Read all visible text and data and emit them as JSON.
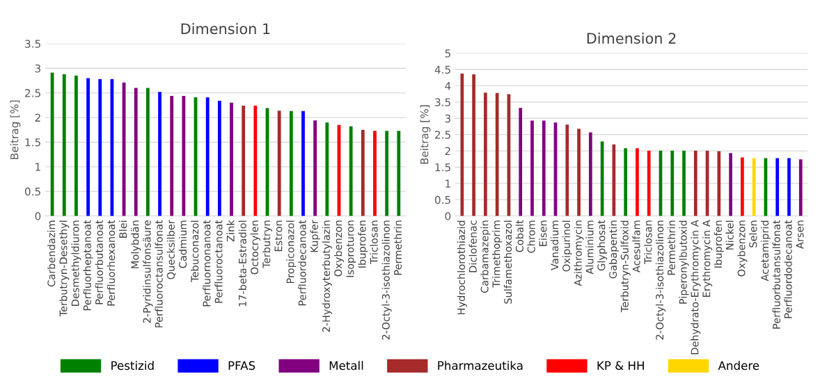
{
  "chart_data": [
    {
      "type": "bar",
      "title": "Dimension 1",
      "ylabel": "Beitrag [%]",
      "ylim": [
        0,
        3.5
      ],
      "yticks": [
        0,
        0.5,
        1,
        1.5,
        2,
        2.5,
        3,
        3.5
      ],
      "grid": "y",
      "legend": "bottom",
      "categories": [
        "Carbendazim",
        "Terbutryn-Desethyl",
        "Desmethyldiuron",
        "Perfluorheptanoat",
        "Perfluorbutanoat",
        "Perfluorhexanoat",
        "Blei",
        "Molybdän",
        "2-Pyridinsulfonsäure",
        "Perfluoroctansulfonat",
        "Quecksilber",
        "Cadmium",
        "Tebuconazol",
        "Perfluornonanoat",
        "Perfluoroctanoat",
        "Zink",
        "17-beta-Estradiol",
        "Octocrylen",
        "Terbutryn",
        "Estron",
        "Propiconazol",
        "Perfluordecanoat",
        "Kupfer",
        "2-Hydroxyterbutylazin",
        "Oxybenzon",
        "Isoproturon",
        "Ibuprofen",
        "Triclosan",
        "2-Octyl-3-isothiazolinon",
        "Permethrin"
      ],
      "series": [
        {
          "name": "Pestizid",
          "color": "#008000",
          "values": [
            2.91,
            2.88,
            2.85,
            null,
            null,
            null,
            null,
            null,
            2.6,
            null,
            null,
            null,
            2.41,
            null,
            null,
            null,
            null,
            null,
            2.19,
            null,
            2.13,
            null,
            null,
            1.9,
            null,
            1.82,
            null,
            null,
            1.73,
            1.73
          ]
        },
        {
          "name": "PFAS",
          "color": "#0000ff",
          "values": [
            null,
            null,
            null,
            2.8,
            2.78,
            2.78,
            null,
            null,
            null,
            2.52,
            null,
            null,
            null,
            2.41,
            2.34,
            null,
            null,
            null,
            null,
            null,
            null,
            2.13,
            null,
            null,
            null,
            null,
            null,
            null,
            null,
            null
          ]
        },
        {
          "name": "Metall",
          "color": "#800080",
          "values": [
            null,
            null,
            null,
            null,
            null,
            null,
            2.71,
            2.6,
            null,
            null,
            2.44,
            2.44,
            null,
            null,
            null,
            2.3,
            null,
            null,
            null,
            null,
            null,
            null,
            1.94,
            null,
            null,
            null,
            null,
            null,
            null,
            null
          ]
        },
        {
          "name": "Pharmazeutika",
          "color": "#a52a2a",
          "values": [
            null,
            null,
            null,
            null,
            null,
            null,
            null,
            null,
            null,
            null,
            null,
            null,
            null,
            null,
            null,
            null,
            2.24,
            null,
            null,
            2.14,
            null,
            null,
            null,
            null,
            null,
            null,
            1.75,
            null,
            null,
            null
          ]
        },
        {
          "name": "KP & HH",
          "color": "#ff0000",
          "values": [
            null,
            null,
            null,
            null,
            null,
            null,
            null,
            null,
            null,
            null,
            null,
            null,
            null,
            null,
            null,
            null,
            null,
            2.24,
            null,
            null,
            null,
            null,
            null,
            null,
            1.85,
            null,
            null,
            1.73,
            null,
            null
          ]
        },
        {
          "name": "Andere",
          "color": "#ffd700",
          "values": [
            null,
            null,
            null,
            null,
            null,
            null,
            null,
            null,
            null,
            null,
            null,
            null,
            null,
            null,
            null,
            null,
            null,
            null,
            null,
            null,
            null,
            null,
            null,
            null,
            null,
            null,
            null,
            null,
            null,
            null
          ]
        }
      ]
    },
    {
      "type": "bar",
      "title": "Dimension 2",
      "ylabel": "Beitrag [%]",
      "ylim": [
        0,
        5
      ],
      "yticks": [
        0,
        0.5,
        1,
        1.5,
        2,
        2.5,
        3,
        3.5,
        4,
        4.5,
        5
      ],
      "grid": "y",
      "categories": [
        "Hydrochlorothiazid",
        "Diclofenac",
        "Carbamazepin",
        "Trimethoprim",
        "Sulfamethoxazol",
        "Cobalt",
        "Chrom",
        "Eisen",
        "Vanadium",
        "Oxipurinol",
        "Azithromycin",
        "Aluminium",
        "Glyphosat",
        "Gabapentin",
        "Terbutryn-Sulfoxid",
        "Acesulfam",
        "Triclosan",
        "2-Octyl-3-isothiazolinon",
        "Permethrin",
        "Piperonylbutoxid",
        "Dehydrato-Erythromycin A",
        "Erythromycin A",
        "Ibuprofen",
        "Nickel",
        "Oxybenzon",
        "Selen",
        "Acetamiprid",
        "Perfluorbutansulfonat",
        "Perfluordodecanoat",
        "Arsen"
      ],
      "series": [
        {
          "color": "#008000",
          "values": [
            null,
            null,
            null,
            null,
            null,
            null,
            null,
            null,
            null,
            null,
            null,
            null,
            2.29,
            null,
            2.08,
            null,
            null,
            2.01,
            2.01,
            2.01,
            null,
            null,
            null,
            null,
            null,
            null,
            1.78,
            null,
            null,
            null
          ]
        },
        {
          "color": "#0000ff",
          "values": [
            null,
            null,
            null,
            null,
            null,
            null,
            null,
            null,
            null,
            null,
            null,
            null,
            null,
            null,
            null,
            null,
            null,
            null,
            null,
            null,
            null,
            null,
            null,
            null,
            null,
            null,
            null,
            1.78,
            1.78,
            null
          ]
        },
        {
          "color": "#800080",
          "values": [
            null,
            null,
            null,
            null,
            null,
            3.32,
            2.93,
            2.93,
            2.87,
            null,
            null,
            2.57,
            null,
            null,
            null,
            null,
            null,
            null,
            null,
            null,
            null,
            null,
            null,
            1.93,
            null,
            null,
            null,
            null,
            null,
            1.74
          ]
        },
        {
          "color": "#a52a2a",
          "values": [
            4.38,
            4.35,
            3.79,
            3.78,
            3.74,
            null,
            null,
            null,
            null,
            2.81,
            2.68,
            null,
            null,
            2.2,
            null,
            null,
            null,
            null,
            null,
            null,
            2.01,
            2.01,
            1.99,
            null,
            null,
            null,
            null,
            null,
            null,
            null
          ]
        },
        {
          "color": "#ff0000",
          "values": [
            null,
            null,
            null,
            null,
            null,
            null,
            null,
            null,
            null,
            null,
            null,
            null,
            null,
            null,
            null,
            2.08,
            2.01,
            null,
            null,
            null,
            null,
            null,
            null,
            null,
            1.8,
            null,
            null,
            null,
            null,
            null
          ]
        },
        {
          "color": "#ffd700",
          "values": [
            null,
            null,
            null,
            null,
            null,
            null,
            null,
            null,
            null,
            null,
            null,
            null,
            null,
            null,
            null,
            null,
            null,
            null,
            null,
            null,
            null,
            null,
            null,
            null,
            null,
            1.78,
            null,
            null,
            null,
            null
          ]
        }
      ]
    }
  ]
}
